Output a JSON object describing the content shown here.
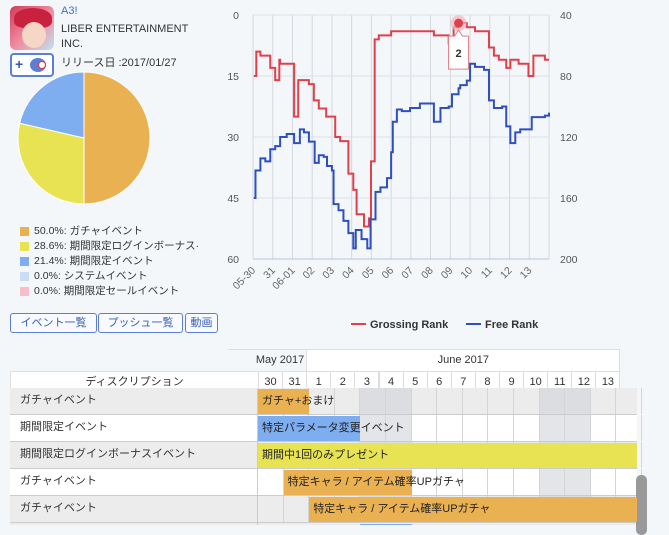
{
  "app": {
    "name": "A3!",
    "publisher": "LIBER ENTERTAINMENT INC.",
    "release": "リリース日 :2017/01/27",
    "follow_icon": "plus-bot-icon"
  },
  "pie": {
    "slices": [
      {
        "label": "50.0%: ガチャイベント",
        "value": 50.0,
        "color": "#e9b152"
      },
      {
        "label": "28.6%: 期間限定ログインボーナス·",
        "value": 28.6,
        "color": "#e8e352"
      },
      {
        "label": "21.4%: 期間限定イベント",
        "value": 21.4,
        "color": "#7eaeef"
      },
      {
        "label": "0.0%: システムイベント",
        "value": 0.0,
        "color": "#c9ddf5"
      },
      {
        "label": "0.0%: 期間限定セールイベント",
        "value": 0.0,
        "color": "#f9bcc8"
      }
    ]
  },
  "buttons": {
    "events": "イベント一覧",
    "push": "プッシュ一覧",
    "video": "動画"
  },
  "chart_data": {
    "type": "line",
    "x_ticks": [
      "05-30",
      "31",
      "06-01",
      "02",
      "03",
      "04",
      "05",
      "06",
      "07",
      "08",
      "09",
      "10",
      "11",
      "12",
      "13"
    ],
    "x_range": [
      "2017-05-30T00:00",
      "2017-06-14T00:00"
    ],
    "y_left": {
      "range": [
        0,
        60
      ],
      "reversed": true,
      "ticks": [
        0,
        15,
        30,
        45,
        60
      ]
    },
    "y_right": {
      "range": [
        40,
        200
      ],
      "reversed": true,
      "ticks": [
        40,
        80,
        120,
        160,
        200
      ]
    },
    "grid": true,
    "legend": "bottom",
    "tooltip": {
      "x": "2017-06-09T10:00",
      "value": "2",
      "series": "Grossing Rank"
    },
    "series": [
      {
        "name": "Grossing Rank",
        "axis": "left",
        "color": "#e0404c",
        "points": [
          [
            "2017-05-30T01:00",
            15
          ],
          [
            "2017-05-30T04:00",
            9
          ],
          [
            "2017-05-30T09:00",
            10
          ],
          [
            "2017-05-30T21:00",
            13
          ],
          [
            "2017-05-31T03:00",
            16
          ],
          [
            "2017-05-31T08:00",
            11
          ],
          [
            "2017-05-31T09:00",
            12
          ],
          [
            "2017-06-01T02:00",
            25
          ],
          [
            "2017-06-01T07:00",
            16
          ],
          [
            "2017-06-01T20:00",
            17
          ],
          [
            "2017-06-02T02:00",
            21
          ],
          [
            "2017-06-02T08:00",
            23
          ],
          [
            "2017-06-02T17:00",
            25
          ],
          [
            "2017-06-03T04:00",
            30
          ],
          [
            "2017-06-03T10:00",
            31
          ],
          [
            "2017-06-03T20:00",
            39
          ],
          [
            "2017-06-04T02:00",
            43
          ],
          [
            "2017-06-04T06:00",
            49
          ],
          [
            "2017-06-04T15:00",
            52
          ],
          [
            "2017-06-04T21:00",
            50
          ],
          [
            "2017-06-04T23:30",
            36
          ],
          [
            "2017-06-05T04:00",
            6
          ],
          [
            "2017-06-05T09:00",
            5
          ],
          [
            "2017-06-06T00:00",
            4
          ],
          [
            "2017-06-08T04:00",
            5
          ],
          [
            "2017-06-08T22:00",
            7
          ],
          [
            "2017-06-09T04:00",
            3
          ],
          [
            "2017-06-09T10:00",
            2
          ],
          [
            "2017-06-09T20:00",
            3
          ],
          [
            "2017-06-10T06:00",
            4
          ],
          [
            "2017-06-10T23:00",
            8
          ],
          [
            "2017-06-11T05:00",
            10
          ],
          [
            "2017-06-11T11:00",
            11
          ],
          [
            "2017-06-11T20:00",
            13
          ],
          [
            "2017-06-12T01:00",
            11
          ],
          [
            "2017-06-12T11:00",
            12
          ],
          [
            "2017-06-12T23:00",
            15
          ],
          [
            "2017-06-13T05:00",
            10
          ],
          [
            "2017-06-13T19:00",
            11
          ],
          [
            "2017-06-14T00:00",
            11
          ]
        ]
      },
      {
        "name": "Free Rank",
        "axis": "right",
        "color": "#2f4fbf",
        "points": [
          [
            "2017-05-30T01:00",
            160
          ],
          [
            "2017-05-30T03:00",
            142
          ],
          [
            "2017-05-30T09:00",
            134
          ],
          [
            "2017-05-30T15:00",
            136
          ],
          [
            "2017-05-30T21:00",
            128
          ],
          [
            "2017-05-31T03:00",
            126
          ],
          [
            "2017-05-31T09:00",
            120
          ],
          [
            "2017-05-31T17:00",
            118
          ],
          [
            "2017-06-01T02:00",
            124
          ],
          [
            "2017-06-01T09:00",
            115
          ],
          [
            "2017-06-01T14:00",
            117
          ],
          [
            "2017-06-01T20:00",
            123
          ],
          [
            "2017-06-02T03:00",
            137
          ],
          [
            "2017-06-02T08:00",
            132
          ],
          [
            "2017-06-02T14:00",
            133
          ],
          [
            "2017-06-02T18:00",
            139
          ],
          [
            "2017-06-03T00:00",
            142
          ],
          [
            "2017-06-03T02:00",
            164
          ],
          [
            "2017-06-03T08:00",
            168
          ],
          [
            "2017-06-03T14:00",
            175
          ],
          [
            "2017-06-03T20:00",
            183
          ],
          [
            "2017-06-04T02:00",
            193
          ],
          [
            "2017-06-04T05:00",
            181
          ],
          [
            "2017-06-04T12:00",
            187
          ],
          [
            "2017-06-04T19:00",
            193
          ],
          [
            "2017-06-04T23:00",
            174
          ],
          [
            "2017-06-05T05:00",
            156
          ],
          [
            "2017-06-05T11:00",
            153
          ],
          [
            "2017-06-05T19:00",
            147
          ],
          [
            "2017-06-06T00:00",
            130
          ],
          [
            "2017-06-06T02:00",
            110
          ],
          [
            "2017-06-06T07:00",
            102
          ],
          [
            "2017-06-06T13:00",
            103
          ],
          [
            "2017-06-06T23:00",
            101
          ],
          [
            "2017-06-07T11:00",
            98
          ],
          [
            "2017-06-08T04:00",
            110
          ],
          [
            "2017-06-08T12:00",
            101
          ],
          [
            "2017-06-08T22:00",
            100
          ],
          [
            "2017-06-09T02:00",
            92
          ],
          [
            "2017-06-09T10:00",
            88
          ],
          [
            "2017-06-09T12:00",
            86
          ],
          [
            "2017-06-09T20:00",
            83
          ],
          [
            "2017-06-10T00:00",
            72
          ],
          [
            "2017-06-10T06:00",
            74
          ],
          [
            "2017-06-10T17:00",
            76
          ],
          [
            "2017-06-10T23:00",
            96
          ],
          [
            "2017-06-11T05:00",
            101
          ],
          [
            "2017-06-11T15:00",
            100
          ],
          [
            "2017-06-11T20:00",
            113
          ],
          [
            "2017-06-12T01:00",
            124
          ],
          [
            "2017-06-12T07:00",
            117
          ],
          [
            "2017-06-12T13:00",
            115
          ],
          [
            "2017-06-13T03:00",
            107
          ],
          [
            "2017-06-13T09:00",
            107
          ],
          [
            "2017-06-13T19:00",
            106
          ],
          [
            "2017-06-14T00:00",
            104
          ]
        ]
      }
    ]
  },
  "gantt": {
    "months": [
      {
        "label": "May 2017",
        "span": 2
      },
      {
        "label": "June 2017",
        "span": 13
      }
    ],
    "desc_header": "ディスクリプション",
    "days": [
      "30",
      "31",
      "1",
      "2",
      "3",
      "4",
      "5",
      "6",
      "7",
      "8",
      "9",
      "10",
      "11",
      "12",
      "13"
    ],
    "weekend_cols": [
      5,
      6,
      12,
      13
    ],
    "rows": [
      {
        "desc": "ガチャイベント",
        "bar": "ガチャ+おまけ",
        "start": 0,
        "len": 2,
        "color": "#e9b152"
      },
      {
        "desc": "期間限定イベント",
        "bar": "特定パラメータ変更イベント",
        "start": 0,
        "len": 4,
        "color": "#7eaeef"
      },
      {
        "desc": "期間限定ログインボーナスイベント",
        "bar": "期間中1回のみプレゼント",
        "start": 0,
        "len": 15,
        "color": "#e8e352"
      },
      {
        "desc": "ガチャイベント",
        "bar": "特定キャラ / アイテム確率UPガチャ",
        "start": 1,
        "len": 5,
        "color": "#e9b152"
      },
      {
        "desc": "ガチャイベント",
        "bar": "特定キャラ / アイテム確率UPガチャ",
        "start": 2,
        "len": 13,
        "color": "#e9b152"
      }
    ]
  }
}
